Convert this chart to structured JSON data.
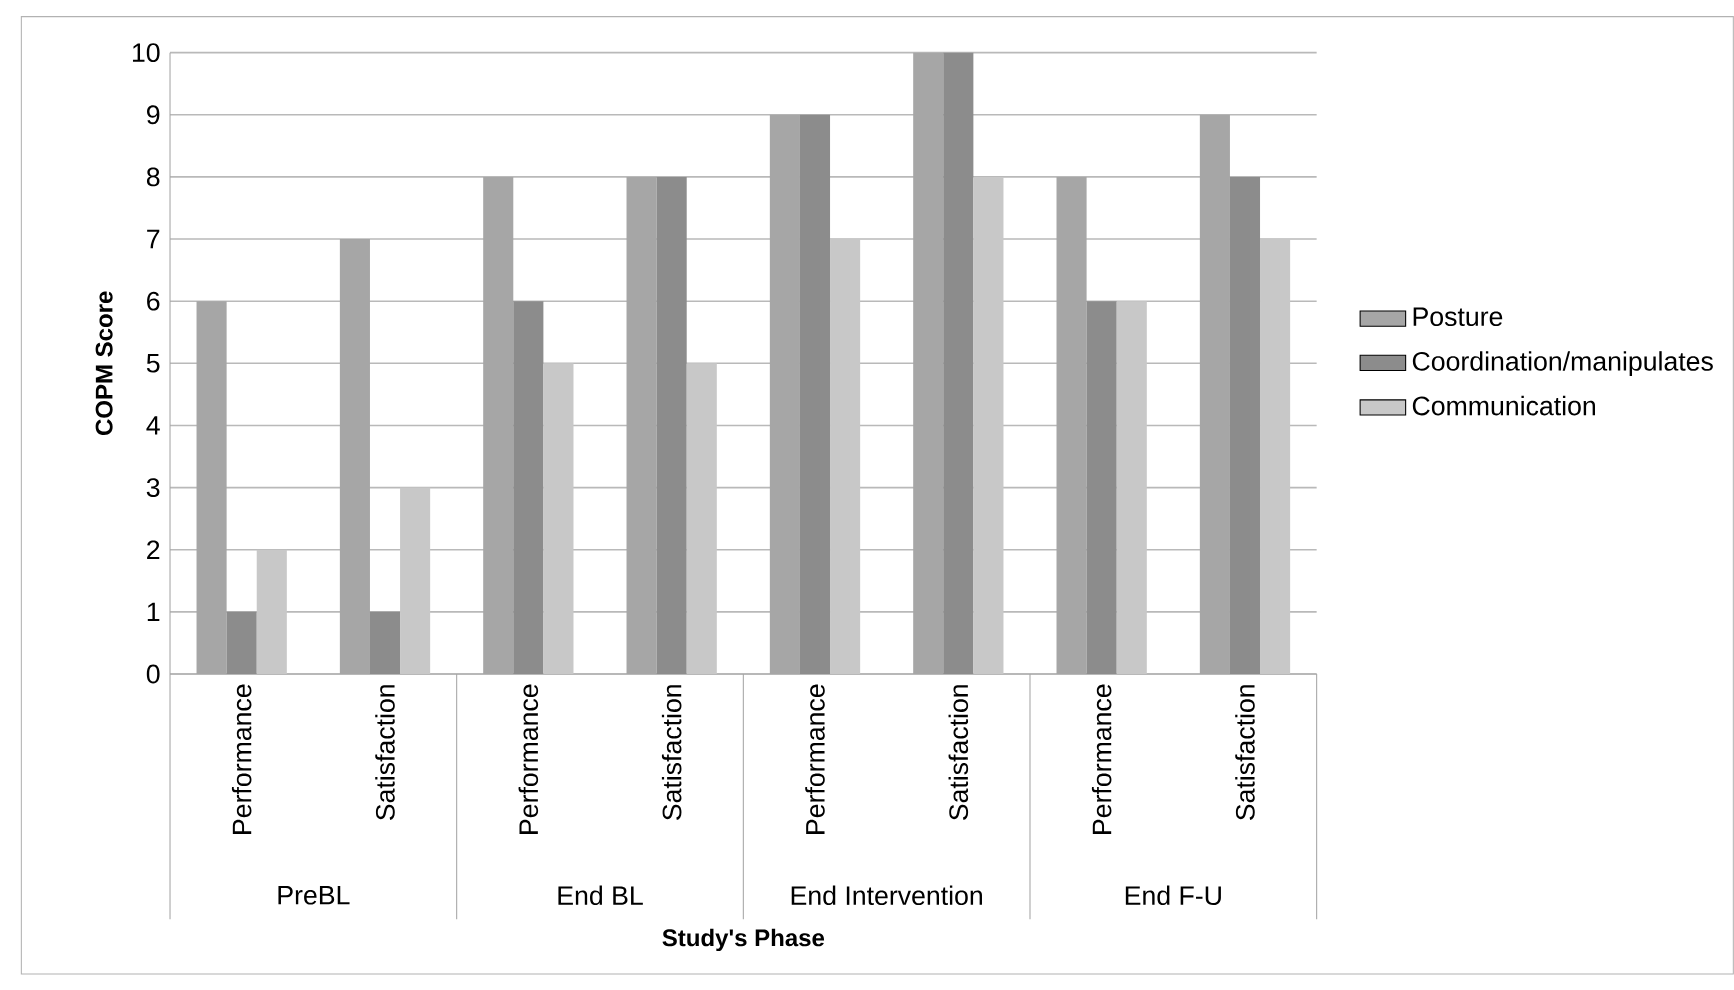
{
  "chart_data": {
    "type": "bar",
    "xlabel": "Study's Phase",
    "ylabel": "COPM Score",
    "categories": [
      "Performance",
      "Satisfaction",
      "Performance",
      "Satisfaction",
      "Performance",
      "Satisfaction",
      "Performance",
      "Satisfaction"
    ],
    "annotations": [
      "PreBL",
      "End BL",
      "End Intervention",
      "End F-U"
    ],
    "series": [
      {
        "name": "Posture",
        "color": "#a6a6a6",
        "values": [
          6,
          7,
          8,
          8,
          9,
          10,
          8,
          9
        ]
      },
      {
        "name": "Coordination/manipulates",
        "color": "#8c8c8c",
        "values": [
          1,
          1,
          6,
          8,
          9,
          10,
          6,
          8
        ]
      },
      {
        "name": "Communication",
        "color": "#c8c8c8",
        "values": [
          2,
          3,
          5,
          5,
          7,
          8,
          6,
          7
        ]
      }
    ],
    "ylim": [
      0,
      10
    ],
    "yticks": [
      0,
      1,
      2,
      3,
      4,
      5,
      6,
      7,
      8,
      9,
      10
    ],
    "grid": "y",
    "legend": "right"
  }
}
